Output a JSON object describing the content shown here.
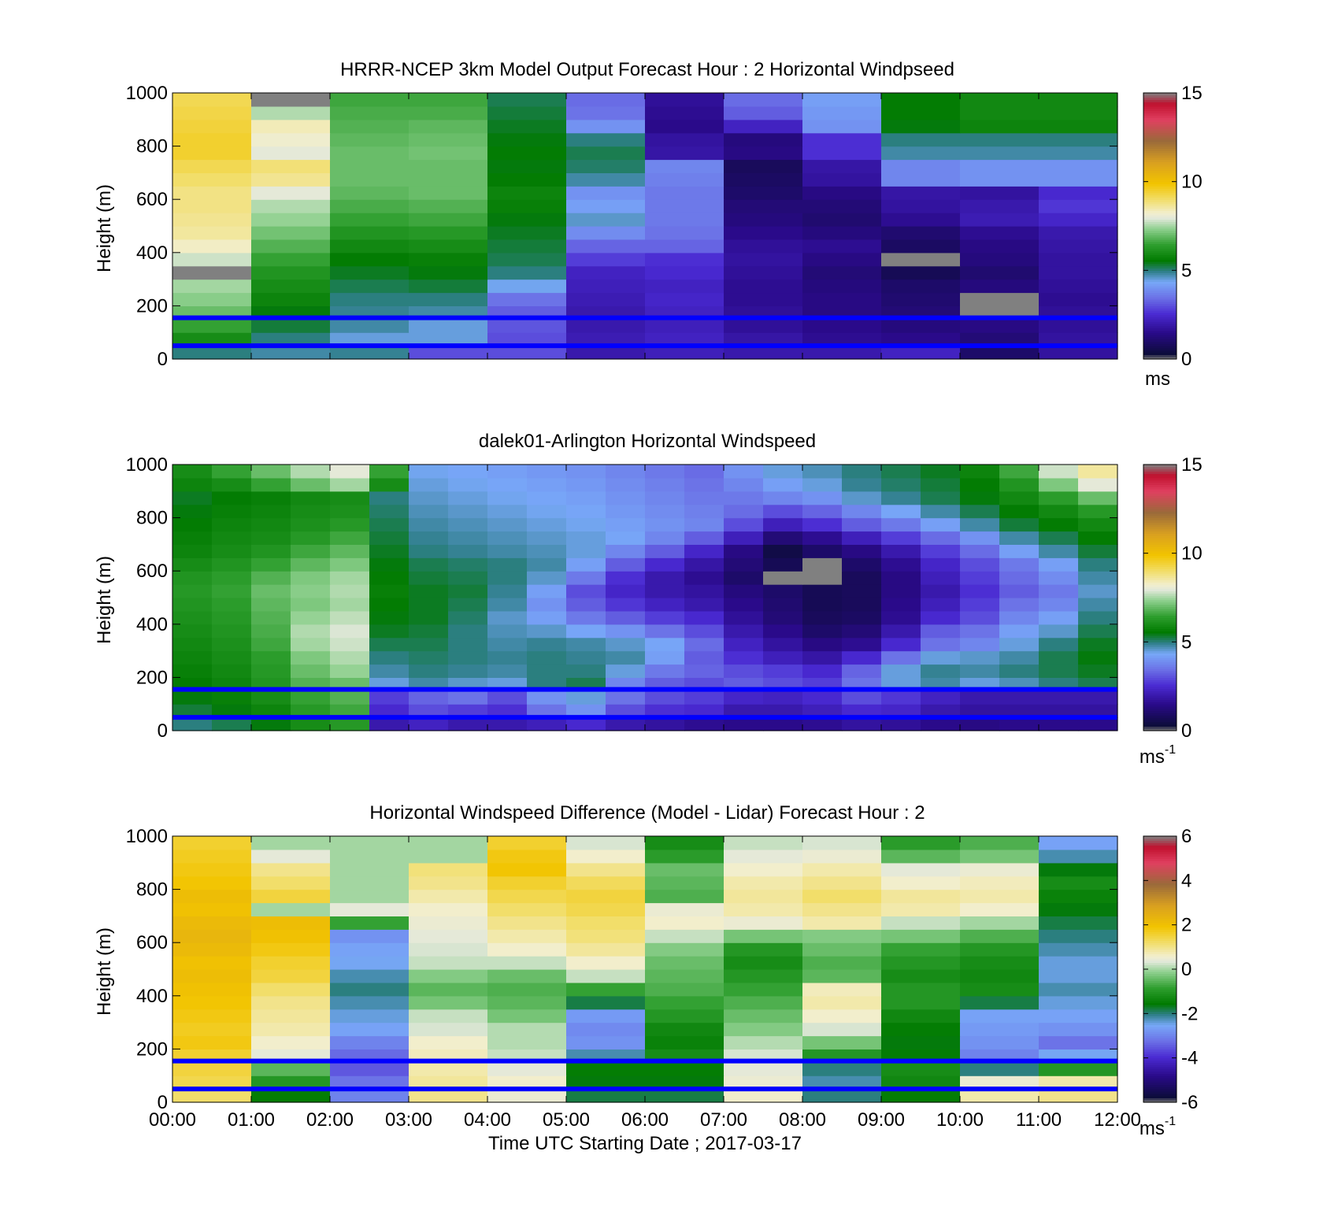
{
  "chart_data": [
    {
      "type": "heatmap",
      "title": "HRRR-NCEP 3km Model Output   Forecast Hour : 2 Horizontal Windpseed",
      "ylabel": "Height (m)",
      "ylim": [
        0,
        1000
      ],
      "yticks": [
        "0",
        "200",
        "400",
        "600",
        "800",
        "1000"
      ],
      "xlim_hours": [
        0,
        12
      ],
      "color_scale": {
        "min": 0,
        "max": 15,
        "ticks": [
          "0",
          "5",
          "10",
          "15"
        ],
        "unit": "ms",
        "unit_sup": ""
      },
      "reference_heights_m": [
        155,
        50
      ],
      "reference_line_color": "#0000ff",
      "x_hours": [
        0.5,
        1.5,
        2.5,
        3.5,
        4.5,
        5.5,
        6.5,
        7.5,
        8.5,
        9.5,
        10.5,
        11.5
      ],
      "heights_m": [
        25,
        75,
        125,
        175,
        225,
        275,
        325,
        375,
        425,
        475,
        525,
        575,
        625,
        675,
        725,
        775,
        825,
        875,
        925,
        975
      ],
      "values": [
        [
          5.0,
          4.8,
          4.9,
          3.0,
          3.0,
          2.0,
          2.2,
          2.0,
          2.0,
          2.3,
          1.0,
          1.8
        ],
        [
          6.0,
          5.0,
          4.5,
          4.5,
          3.0,
          2.1,
          2.3,
          1.9,
          1.6,
          1.5,
          1.2,
          1.8
        ],
        [
          6.5,
          5.3,
          4.8,
          4.5,
          3.1,
          2.0,
          2.2,
          1.7,
          1.5,
          1.3,
          1.4,
          1.7
        ],
        [
          7.0,
          5.5,
          4.9,
          4.8,
          3.2,
          2.0,
          2.3,
          1.7,
          1.4,
          1.2,
          0.0,
          1.7
        ],
        [
          7.3,
          5.8,
          5.0,
          5.0,
          3.5,
          2.1,
          2.4,
          1.6,
          1.4,
          1.1,
          0.0,
          1.6
        ],
        [
          7.5,
          6.0,
          5.2,
          5.3,
          4.4,
          2.2,
          2.3,
          1.6,
          1.3,
          1.0,
          1.3,
          1.7
        ],
        [
          0.0,
          6.2,
          5.4,
          5.5,
          5.0,
          2.3,
          2.5,
          1.7,
          1.2,
          0.7,
          1.1,
          1.8
        ],
        [
          7.8,
          6.5,
          5.6,
          5.7,
          5.2,
          2.8,
          2.6,
          1.8,
          1.4,
          0.0,
          1.3,
          1.8
        ],
        [
          8.3,
          6.8,
          5.9,
          6.0,
          5.3,
          3.3,
          3.3,
          1.7,
          1.6,
          0.9,
          1.4,
          1.9
        ],
        [
          8.6,
          7.1,
          6.2,
          6.3,
          5.4,
          3.9,
          3.5,
          1.5,
          1.3,
          1.1,
          1.6,
          2.0
        ],
        [
          8.7,
          7.4,
          6.5,
          6.6,
          5.5,
          4.6,
          3.6,
          1.3,
          1.1,
          1.6,
          2.1,
          2.4
        ],
        [
          8.8,
          7.6,
          6.7,
          6.8,
          5.7,
          4.2,
          3.6,
          1.2,
          1.2,
          1.8,
          2.0,
          2.7
        ],
        [
          8.8,
          8.0,
          6.9,
          7.0,
          5.8,
          4.0,
          3.6,
          1.0,
          1.4,
          1.9,
          1.8,
          2.5
        ],
        [
          9.0,
          8.7,
          7.0,
          7.0,
          5.6,
          4.8,
          3.7,
          0.9,
          1.8,
          3.8,
          4.0,
          4.0
        ],
        [
          9.2,
          8.9,
          7.0,
          7.0,
          5.5,
          5.1,
          3.8,
          0.8,
          1.9,
          3.8,
          4.0,
          4.0
        ],
        [
          9.5,
          8.0,
          7.0,
          7.1,
          5.6,
          5.2,
          1.9,
          1.4,
          2.6,
          4.8,
          4.8,
          4.8
        ],
        [
          9.5,
          8.2,
          6.9,
          7.0,
          5.5,
          5.0,
          1.8,
          1.3,
          2.6,
          5.0,
          5.0,
          5.0
        ],
        [
          9.4,
          8.4,
          6.8,
          6.9,
          5.4,
          4.0,
          1.5,
          2.3,
          4.0,
          5.5,
          5.8,
          5.8
        ],
        [
          9.3,
          7.6,
          6.7,
          6.7,
          5.3,
          3.5,
          1.6,
          3.2,
          4.1,
          5.6,
          5.9,
          5.9
        ],
        [
          9.2,
          0.0,
          6.6,
          6.6,
          5.2,
          3.4,
          1.7,
          3.4,
          4.2,
          5.6,
          5.9,
          5.9
        ]
      ]
    },
    {
      "type": "heatmap",
      "title": "dalek01-Arlington  Horizontal Windspeed",
      "ylabel": "Height (m)",
      "ylim": [
        0,
        1000
      ],
      "yticks": [
        "0",
        "200",
        "400",
        "600",
        "800",
        "1000"
      ],
      "xlim_hours": [
        0,
        12
      ],
      "color_scale": {
        "min": 0,
        "max": 15,
        "ticks": [
          "0",
          "5",
          "10",
          "15"
        ],
        "unit": "ms",
        "unit_sup": "-1"
      },
      "reference_heights_m": [
        155,
        50
      ],
      "reference_line_color": "#0000ff",
      "x_hours": [
        0.25,
        0.75,
        1.25,
        1.75,
        2.25,
        2.75,
        3.25,
        3.75,
        4.25,
        4.75,
        5.25,
        5.75,
        6.25,
        6.75,
        7.25,
        7.75,
        8.25,
        8.75,
        9.25,
        9.75,
        10.25,
        10.75,
        11.25,
        11.75
      ],
      "heights_m": [
        25,
        75,
        125,
        175,
        225,
        275,
        325,
        375,
        425,
        475,
        525,
        575,
        625,
        675,
        725,
        775,
        825,
        875,
        925,
        975
      ],
      "values": [
        [
          5.0,
          5.2,
          5.5,
          6.0,
          6.3,
          2.0,
          2.3,
          2.0,
          2.0,
          2.2,
          2.5,
          2.0,
          1.8,
          1.6,
          1.5,
          1.5,
          1.6,
          1.8,
          1.7,
          1.5,
          1.4,
          1.5,
          1.5,
          1.5
        ],
        [
          5.3,
          5.5,
          5.8,
          6.3,
          6.6,
          2.5,
          3.0,
          2.8,
          2.6,
          3.5,
          4.0,
          3.0,
          2.6,
          2.5,
          2.0,
          2.0,
          2.2,
          2.5,
          2.4,
          2.0,
          1.8,
          1.8,
          1.8,
          1.8
        ],
        [
          5.5,
          5.7,
          6.0,
          6.5,
          6.8,
          2.8,
          3.3,
          3.5,
          3.0,
          4.0,
          4.5,
          3.5,
          3.0,
          2.8,
          2.4,
          2.3,
          2.5,
          3.0,
          2.7,
          2.3,
          2.0,
          2.0,
          2.0,
          2.0
        ],
        [
          5.6,
          5.8,
          6.2,
          6.8,
          7.0,
          4.5,
          4.8,
          4.6,
          4.5,
          5.0,
          5.2,
          3.8,
          3.2,
          3.0,
          3.2,
          3.0,
          2.8,
          3.5,
          4.5,
          4.8,
          4.5,
          4.7,
          5.0,
          5.2
        ],
        [
          5.7,
          5.9,
          6.3,
          7.0,
          7.4,
          4.8,
          5.0,
          4.9,
          4.8,
          5.0,
          5.0,
          4.5,
          3.6,
          3.3,
          3.0,
          2.8,
          2.5,
          3.3,
          4.5,
          4.9,
          4.8,
          5.0,
          5.2,
          5.4
        ],
        [
          5.8,
          6.0,
          6.4,
          7.2,
          7.6,
          5.0,
          5.1,
          5.0,
          4.9,
          5.0,
          4.9,
          4.8,
          4.2,
          3.2,
          2.6,
          2.2,
          1.9,
          2.5,
          3.5,
          4.5,
          4.6,
          4.8,
          5.2,
          5.5
        ],
        [
          5.9,
          6.1,
          6.6,
          7.5,
          7.8,
          5.2,
          5.2,
          5.0,
          4.8,
          4.9,
          4.8,
          4.6,
          4.3,
          3.4,
          2.3,
          1.8,
          1.4,
          1.6,
          2.5,
          3.5,
          3.8,
          4.5,
          5.0,
          5.4
        ],
        [
          6.0,
          6.2,
          6.7,
          7.6,
          7.9,
          5.4,
          5.3,
          5.0,
          4.7,
          4.6,
          4.3,
          4.0,
          3.5,
          3.0,
          2.0,
          1.5,
          1.0,
          1.2,
          2.0,
          3.2,
          3.5,
          4.2,
          4.6,
          5.2
        ],
        [
          6.1,
          6.3,
          6.8,
          7.4,
          7.7,
          5.5,
          5.4,
          5.1,
          4.6,
          4.2,
          3.6,
          3.2,
          2.8,
          2.5,
          1.7,
          1.2,
          0.8,
          0.9,
          1.6,
          2.5,
          3.0,
          3.8,
          4.2,
          5.0
        ],
        [
          6.2,
          6.4,
          6.9,
          7.2,
          7.5,
          5.6,
          5.4,
          5.2,
          4.8,
          4.0,
          3.2,
          2.7,
          2.3,
          2.0,
          1.5,
          1.1,
          0.7,
          0.8,
          1.5,
          2.2,
          2.8,
          3.5,
          3.8,
          4.8
        ],
        [
          6.3,
          6.5,
          7.0,
          7.3,
          7.6,
          5.7,
          5.4,
          5.3,
          4.9,
          4.2,
          3.0,
          2.4,
          2.0,
          1.8,
          1.3,
          1.0,
          0.7,
          0.8,
          1.4,
          2.0,
          2.6,
          3.2,
          3.6,
          4.6
        ],
        [
          6.2,
          6.4,
          6.8,
          7.2,
          7.5,
          5.6,
          5.3,
          5.2,
          5.0,
          4.6,
          3.6,
          2.6,
          2.0,
          1.6,
          1.0,
          0.0,
          0.0,
          0.8,
          1.4,
          2.2,
          2.8,
          3.4,
          3.9,
          4.8
        ],
        [
          6.0,
          6.2,
          6.5,
          6.9,
          7.2,
          5.5,
          5.2,
          5.1,
          5.0,
          4.8,
          4.2,
          3.2,
          2.5,
          1.9,
          1.2,
          0.7,
          0.0,
          1.0,
          1.6,
          2.4,
          3.0,
          3.6,
          4.2,
          5.0
        ],
        [
          5.8,
          6.0,
          6.2,
          6.6,
          6.9,
          5.4,
          5.0,
          4.9,
          4.8,
          4.7,
          4.5,
          3.8,
          3.2,
          2.4,
          1.4,
          0.5,
          1.0,
          1.4,
          2.0,
          2.8,
          3.4,
          4.2,
          4.8,
          5.3
        ],
        [
          5.7,
          5.9,
          6.0,
          6.3,
          6.6,
          5.3,
          4.9,
          4.8,
          4.7,
          4.6,
          4.5,
          4.3,
          3.8,
          3.2,
          2.2,
          1.2,
          1.6,
          2.2,
          2.8,
          3.4,
          4.0,
          4.8,
          5.2,
          5.6
        ],
        [
          5.6,
          5.8,
          5.9,
          6.1,
          6.3,
          5.2,
          4.8,
          4.7,
          4.6,
          4.5,
          4.4,
          4.2,
          4.0,
          3.8,
          3.0,
          2.2,
          2.6,
          3.2,
          3.6,
          4.2,
          4.8,
          5.3,
          5.6,
          5.9
        ],
        [
          5.5,
          5.7,
          5.8,
          6.0,
          6.1,
          5.1,
          4.7,
          4.6,
          4.5,
          4.4,
          4.3,
          4.1,
          3.9,
          3.7,
          3.4,
          3.0,
          3.3,
          3.8,
          4.3,
          4.8,
          5.2,
          5.6,
          5.9,
          6.3
        ],
        [
          5.4,
          5.6,
          5.7,
          5.9,
          6.0,
          5.0,
          4.6,
          4.5,
          4.4,
          4.3,
          4.2,
          4.0,
          3.8,
          3.6,
          3.6,
          3.8,
          4.0,
          4.6,
          4.9,
          5.2,
          5.5,
          5.9,
          6.4,
          7.0
        ],
        [
          5.8,
          6.0,
          6.5,
          7.0,
          7.5,
          6.0,
          4.5,
          4.4,
          4.3,
          4.2,
          4.1,
          3.9,
          3.7,
          3.5,
          3.8,
          4.2,
          4.5,
          4.9,
          5.1,
          5.3,
          5.6,
          6.2,
          7.2,
          8.0
        ],
        [
          6.0,
          6.5,
          7.0,
          7.6,
          8.0,
          6.5,
          4.4,
          4.3,
          4.2,
          4.1,
          4.0,
          3.8,
          3.6,
          3.4,
          4.0,
          4.5,
          4.7,
          5.0,
          5.2,
          5.4,
          5.8,
          6.6,
          7.8,
          8.6
        ]
      ]
    },
    {
      "type": "heatmap",
      "title": "Horizontal Windspeed Difference (Model - Lidar) Forecast Hour : 2",
      "ylabel": "Height (m)",
      "xlabel": "Time UTC  Starting Date ; 2017-03-17",
      "ylim": [
        0,
        1000
      ],
      "yticks": [
        "0",
        "200",
        "400",
        "600",
        "800",
        "1000"
      ],
      "xticks": [
        "00:00",
        "01:00",
        "02:00",
        "03:00",
        "04:00",
        "05:00",
        "06:00",
        "07:00",
        "08:00",
        "09:00",
        "10:00",
        "11:00",
        "12:00"
      ],
      "xlim_hours": [
        0,
        12
      ],
      "color_scale": {
        "min": -6,
        "max": 6,
        "ticks": [
          "-6",
          "-4",
          "-2",
          "0",
          "2",
          "4",
          "6"
        ],
        "unit": "ms",
        "unit_sup": "-1"
      },
      "reference_heights_m": [
        155,
        50
      ],
      "reference_line_color": "#0000ff",
      "x_hours": [
        0.5,
        1.5,
        2.5,
        3.5,
        4.5,
        5.5,
        6.5,
        7.5,
        8.5,
        9.5,
        10.5,
        11.5
      ],
      "heights_m": [
        25,
        75,
        125,
        175,
        225,
        275,
        325,
        375,
        425,
        475,
        525,
        575,
        625,
        675,
        725,
        775,
        825,
        875,
        925,
        975
      ],
      "values": [
        [
          1.2,
          -1.5,
          -3.0,
          1.0,
          0.5,
          -1.8,
          -1.8,
          0.6,
          -2.0,
          -1.5,
          0.8,
          1.0
        ],
        [
          1.4,
          -1.0,
          -3.2,
          0.9,
          0.6,
          -1.6,
          -1.6,
          0.5,
          -2.2,
          -1.3,
          0.5,
          0.8
        ],
        [
          1.5,
          -0.5,
          -3.5,
          0.8,
          0.4,
          -1.5,
          -1.5,
          0.4,
          -2.0,
          -1.2,
          -2.0,
          -1.0
        ],
        [
          1.6,
          0.4,
          -3.3,
          0.7,
          0.2,
          -2.2,
          -1.2,
          0.3,
          -1.0,
          -1.5,
          -3.0,
          -2.5
        ],
        [
          1.8,
          0.6,
          -3.0,
          0.6,
          0.1,
          -2.8,
          -1.4,
          0.1,
          -0.3,
          -1.6,
          -2.8,
          -3.2
        ],
        [
          1.7,
          0.8,
          -2.6,
          0.3,
          0.1,
          -2.9,
          -1.3,
          -0.2,
          0.3,
          -1.5,
          -2.7,
          -2.8
        ],
        [
          1.8,
          0.9,
          -2.4,
          0.2,
          -0.3,
          -2.7,
          -1.0,
          -0.4,
          0.6,
          -1.3,
          -2.6,
          -2.6
        ],
        [
          1.9,
          1.0,
          -2.2,
          -0.3,
          -0.5,
          -1.8,
          -0.8,
          -0.6,
          0.8,
          -1.0,
          -1.8,
          -2.4
        ],
        [
          2.0,
          1.2,
          -2.0,
          -0.5,
          -0.6,
          -0.8,
          -0.6,
          -0.8,
          0.7,
          -1.0,
          -1.2,
          -2.2
        ],
        [
          2.1,
          1.5,
          -2.2,
          -0.2,
          -0.4,
          0.2,
          -0.5,
          -1.0,
          -0.5,
          -1.2,
          -1.3,
          -2.4
        ],
        [
          2.0,
          1.6,
          -2.5,
          0.2,
          0.2,
          0.6,
          -0.4,
          -1.2,
          -0.6,
          -1.0,
          -1.2,
          -2.4
        ],
        [
          2.2,
          1.8,
          -2.6,
          0.3,
          0.6,
          0.9,
          -0.2,
          -1.0,
          -0.4,
          -0.8,
          -1.0,
          -2.2
        ],
        [
          2.3,
          2.0,
          -2.8,
          0.4,
          0.8,
          1.1,
          0.2,
          -0.3,
          -0.2,
          -0.3,
          -0.6,
          -2.0
        ],
        [
          2.2,
          2.1,
          -0.8,
          0.5,
          1.0,
          1.2,
          0.6,
          0.5,
          0.8,
          0.2,
          0.0,
          -1.8
        ],
        [
          2.0,
          0.0,
          0.4,
          0.6,
          1.2,
          1.4,
          0.5,
          0.8,
          1.0,
          0.8,
          0.6,
          -1.6
        ],
        [
          2.1,
          1.5,
          0.0,
          0.8,
          1.4,
          1.5,
          -0.6,
          0.9,
          1.2,
          0.9,
          0.8,
          -1.4
        ],
        [
          1.9,
          1.2,
          0.0,
          1.0,
          1.6,
          1.3,
          -0.5,
          0.8,
          1.0,
          0.6,
          0.7,
          -1.2
        ],
        [
          1.8,
          1.0,
          0.0,
          1.1,
          1.9,
          1.0,
          -0.4,
          0.6,
          0.8,
          0.4,
          0.5,
          -1.6
        ],
        [
          1.7,
          0.4,
          0.0,
          0.0,
          1.8,
          0.6,
          -0.9,
          0.4,
          0.5,
          -0.5,
          -0.3,
          -2.2
        ],
        [
          1.6,
          0.0,
          0.0,
          0.0,
          1.6,
          0.3,
          -1.2,
          0.2,
          0.3,
          -0.9,
          -0.6,
          -2.6
        ]
      ]
    }
  ]
}
